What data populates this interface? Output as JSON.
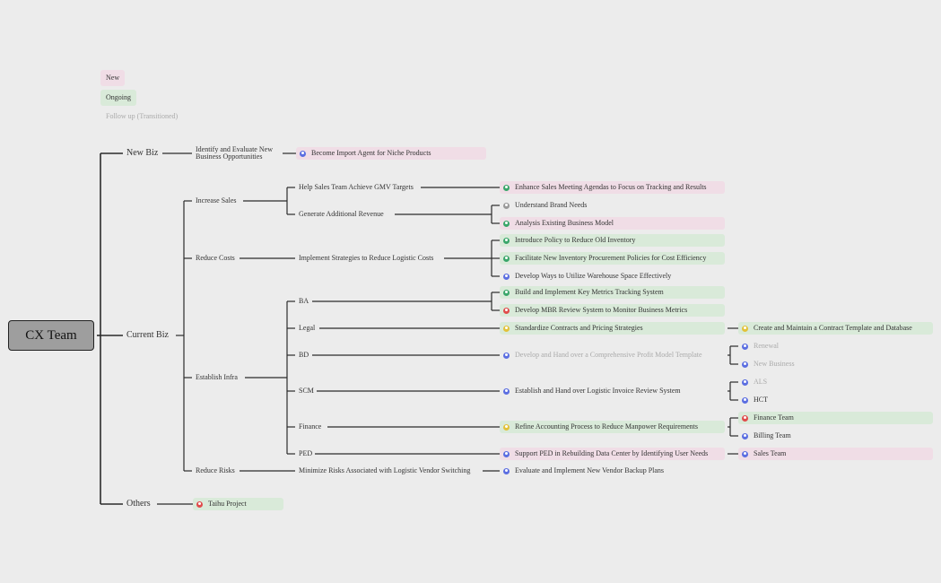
{
  "legend": [
    "New",
    "Ongoing",
    "Follow up (Transitioned)"
  ],
  "root": {
    "label": "CX Team",
    "children": [
      {
        "label": "New Biz",
        "children": [
          {
            "label": "Identify and Evaluate New Business Opportunities",
            "children": [
              {
                "label": "Become Import Agent for Niche Products"
              }
            ]
          }
        ]
      },
      {
        "label": "Current Biz",
        "children": [
          {
            "label": "Increase Sales",
            "children": [
              {
                "label": "Help Sales Team Achieve GMV Targets",
                "children": [
                  {
                    "label": "Enhance Sales Meeting Agendas to Focus on Tracking and Results"
                  }
                ]
              },
              {
                "label": "Generate Additional Revenue",
                "children": [
                  {
                    "label": "Understand Brand Needs"
                  },
                  {
                    "label": "Analysis Existing Business Model"
                  }
                ]
              }
            ]
          },
          {
            "label": "Reduce Costs",
            "children": [
              {
                "label": "Implement Strategies to Reduce Logistic Costs",
                "children": [
                  {
                    "label": "Introduce Policy to Reduce Old Inventory"
                  },
                  {
                    "label": "Facilitate New Inventory Procurement Policies for Cost Efficiency"
                  },
                  {
                    "label": "Develop Ways to Utilize Warehouse Space Effectively"
                  }
                ]
              }
            ]
          },
          {
            "label": "Establish Infra",
            "children": [
              {
                "label": "BA",
                "children": [
                  {
                    "label": "Build and Implement Key Metrics Tracking System"
                  },
                  {
                    "label": "Develop MBR Review System to Monitor Business Metrics"
                  }
                ]
              },
              {
                "label": "Legal",
                "children": [
                  {
                    "label": "Standardize Contracts and Pricing Strategies",
                    "children": [
                      {
                        "label": "Create and Maintain a Contract Template and Database"
                      }
                    ]
                  }
                ]
              },
              {
                "label": "BD",
                "children": [
                  {
                    "label": "Develop and Hand over a Comprehensive Profit Model Template",
                    "children": [
                      {
                        "label": "Renewal"
                      },
                      {
                        "label": "New Business"
                      }
                    ]
                  }
                ]
              },
              {
                "label": "SCM",
                "children": [
                  {
                    "label": "Establish and Hand over Logistic Invoice Review System",
                    "children": [
                      {
                        "label": "ALS"
                      },
                      {
                        "label": "HCT"
                      }
                    ]
                  }
                ]
              },
              {
                "label": "Finance",
                "children": [
                  {
                    "label": "Refine Accounting Process to Reduce Manpower Requirements",
                    "children": [
                      {
                        "label": "Finance Team"
                      },
                      {
                        "label": "Billing Team"
                      }
                    ]
                  }
                ]
              },
              {
                "label": "PED",
                "children": [
                  {
                    "label": "Support PED in Rebuilding Data Center by Identifying User Needs",
                    "children": [
                      {
                        "label": "Sales Team"
                      }
                    ]
                  }
                ]
              }
            ]
          },
          {
            "label": "Reduce Risks",
            "children": [
              {
                "label": "Minimize Risks Associated with Logistic Vendor Switching",
                "children": [
                  {
                    "label": "Evaluate and Implement New Vendor Backup Plans"
                  }
                ]
              }
            ]
          }
        ]
      },
      {
        "label": "Others",
        "children": [
          {
            "label": "Taihu Project"
          }
        ]
      }
    ]
  }
}
